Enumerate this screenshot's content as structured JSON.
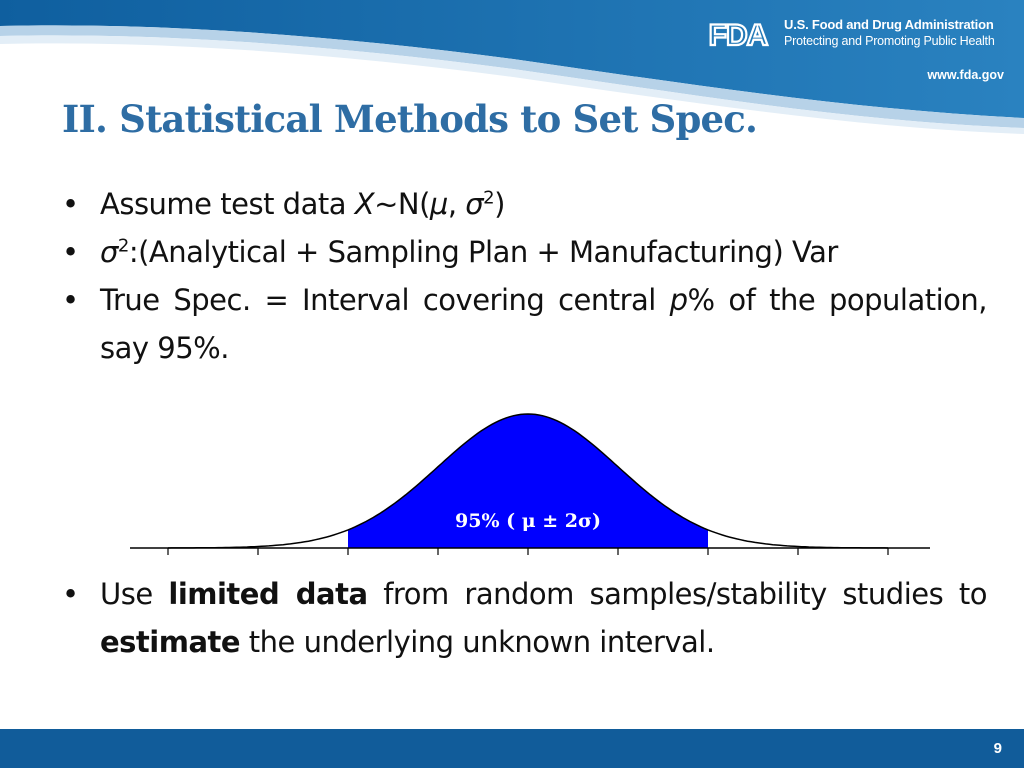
{
  "header": {
    "agency_name": "U.S. Food and Drug Administration",
    "tagline": "Protecting and Promoting Public Health",
    "website": "www.fda.gov",
    "logo_text": "FDA"
  },
  "title": "II. Statistical Methods to Set Spec.",
  "bullets_top": [
    {
      "prefix": "Assume test data ",
      "var_x": "X",
      "mid": "∼N(",
      "var_mu": "μ",
      "comma": ", ",
      "var_sigma": "σ",
      "sup": "2",
      "suffix": ")"
    },
    {
      "var_sigma": "σ",
      "sup": "2",
      "text": ":(Analytical + Sampling Plan + Manufacturing) Var"
    },
    {
      "before": "True Spec. = Interval covering central ",
      "var_p": "p",
      "after": "% of the population, say 95%."
    }
  ],
  "figure": {
    "label": "95% ( μ ± 2σ)",
    "fill_color": "#0000ff",
    "coverage": 0.95,
    "mean": 0,
    "sd": 1,
    "shaded_range_sd": [
      -2,
      2
    ],
    "visible_range_sd": [
      -4,
      4
    ]
  },
  "bullets_bottom": [
    {
      "w1": "Use",
      "bold1": "limited data",
      "w2": "from random samples/stability studies to",
      "bold2": "estimate",
      "w3": "the underlying unknown interval."
    }
  ],
  "footer": {
    "page_number": "9"
  },
  "colors": {
    "title": "#2e6da4",
    "header_blue": "#1b6aa6",
    "footer_blue": "#115c9a"
  }
}
